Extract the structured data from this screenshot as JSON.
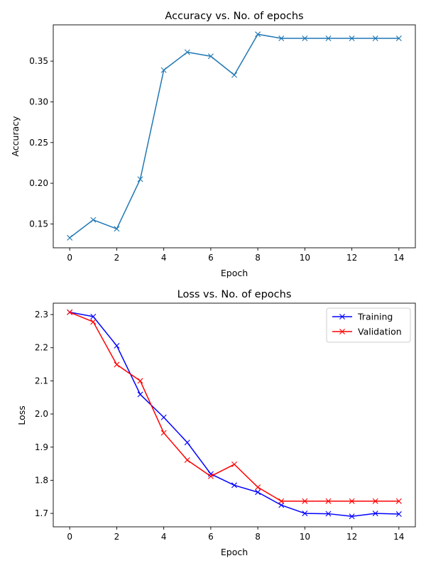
{
  "chart_data": [
    {
      "type": "line",
      "title": "Accuracy vs. No. of epochs",
      "xlabel": "Epoch",
      "ylabel": "Accuracy",
      "xlim": [
        -0.7,
        14.7
      ],
      "ylim": [
        0.1207,
        0.3946
      ],
      "xticks": [
        0,
        2,
        4,
        6,
        8,
        10,
        12,
        14
      ],
      "yticks": [
        0.15,
        0.2,
        0.25,
        0.3,
        0.35
      ],
      "ytick_labels": [
        "0.15",
        "0.20",
        "0.25",
        "0.30",
        "0.35"
      ],
      "grid": false,
      "series": [
        {
          "color": "#1f77b4",
          "marker": "x",
          "x": [
            0,
            1,
            2,
            3,
            4,
            5,
            6,
            7,
            8,
            9,
            10,
            11,
            12,
            13,
            14
          ],
          "y": [
            0.133,
            0.155,
            0.144,
            0.205,
            0.339,
            0.361,
            0.356,
            0.333,
            0.383,
            0.378,
            0.378,
            0.378,
            0.378,
            0.378,
            0.378
          ]
        }
      ]
    },
    {
      "type": "line",
      "title": "Loss vs. No. of epochs",
      "xlabel": "Epoch",
      "ylabel": "Loss",
      "xlim": [
        -0.7,
        14.7
      ],
      "ylim": [
        1.6595,
        2.3344
      ],
      "xticks": [
        0,
        2,
        4,
        6,
        8,
        10,
        12,
        14
      ],
      "yticks": [
        1.7,
        1.8,
        1.9,
        2.0,
        2.1,
        2.2,
        2.3
      ],
      "ytick_labels": [
        "1.7",
        "1.8",
        "1.9",
        "2.0",
        "2.1",
        "2.2",
        "2.3"
      ],
      "grid": false,
      "legend": "top-right",
      "series": [
        {
          "name": "Training",
          "color": "#0000ff",
          "marker": "x",
          "x": [
            0,
            1,
            2,
            3,
            4,
            5,
            6,
            7,
            8,
            9,
            10,
            11,
            12,
            13,
            14
          ],
          "y": [
            2.307,
            2.294,
            2.206,
            2.059,
            1.99,
            1.914,
            1.819,
            1.785,
            1.764,
            1.725,
            1.7,
            1.699,
            1.691,
            1.7,
            1.698
          ]
        },
        {
          "name": "Validation",
          "color": "#ff0000",
          "marker": "x",
          "x": [
            0,
            1,
            2,
            3,
            4,
            5,
            6,
            7,
            8,
            9,
            10,
            11,
            12,
            13,
            14
          ],
          "y": [
            2.307,
            2.278,
            2.149,
            2.1,
            1.943,
            1.861,
            1.812,
            1.848,
            1.779,
            1.737,
            1.737,
            1.737,
            1.737,
            1.737,
            1.737
          ]
        }
      ]
    }
  ]
}
